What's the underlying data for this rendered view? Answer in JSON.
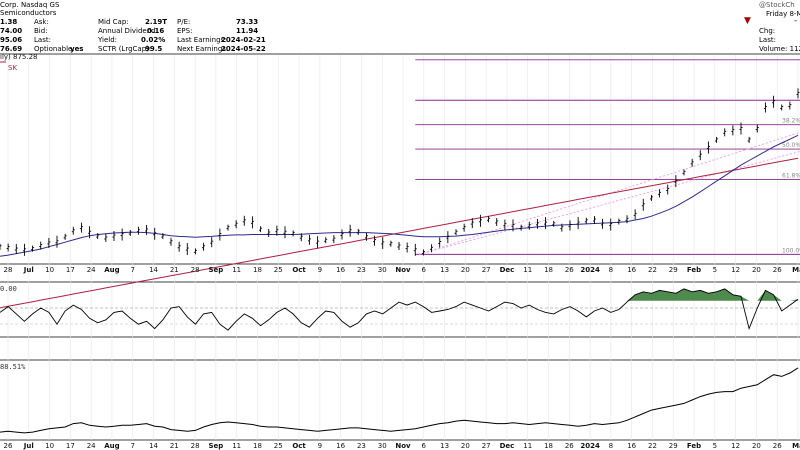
{
  "header": {
    "name_line": "Corp. Nasdaq GS",
    "sector": "Semiconductors",
    "quote_left": [
      "1.38",
      "74.00",
      "95.06",
      "76.69"
    ],
    "quote_labels": [
      "Ask:",
      "Bid:",
      "Last:",
      "Optionable:"
    ],
    "optionable": "yes",
    "stats_labels": [
      "Mid Cap:",
      "Annual Dividend:",
      "Yield:",
      "SCTR (LrgCap):"
    ],
    "stats_values": [
      "2.19T",
      "0.16",
      "0.02%",
      "99.5"
    ],
    "fund_labels": [
      "P/E:",
      "EPS:",
      "Last Earnings:",
      "Next Earnings:"
    ],
    "fund_values": [
      "73.33",
      "11.94",
      "2024-02-21",
      "2024-05-22"
    ],
    "brand": "@StockCh",
    "date": "Friday  8-M",
    "right_labels": [
      "Chg:",
      "Last:",
      "Volume: 112,8"
    ],
    "ma_legend": "ily) 875.28",
    "ma_legend2": "SK",
    "pane2_label": "0.00",
    "pane3_label": "88.51%"
  },
  "colors": {
    "price": "#000000",
    "ma50": "#2b2b8f",
    "ma200": "#b02040",
    "fib": "#8a2a8a",
    "trend": "#ee99ee",
    "rsi_fill": "#4f8a4f",
    "down": "#aa0000"
  },
  "chart_data": {
    "type": "line",
    "title": "",
    "x_ticks_main": [
      "28",
      "Jul",
      "10",
      "17",
      "24",
      "Aug",
      "7",
      "14",
      "21",
      "28",
      "Sep",
      "11",
      "18",
      "25",
      "Oct",
      "9",
      "16",
      "23",
      "30",
      "Nov",
      "6",
      "13",
      "20",
      "27",
      "Dec",
      "11",
      "18",
      "26",
      "2024",
      "8",
      "16",
      "22",
      "29",
      "Feb",
      "5",
      "12",
      "20",
      "26",
      "Ma"
    ],
    "x_ticks_lower": [
      "26",
      "Jul",
      "10",
      "17",
      "24",
      "Aug",
      "7",
      "14",
      "21",
      "28",
      "Sep",
      "11",
      "18",
      "25",
      "Oct",
      "9",
      "16",
      "23",
      "30",
      "Nov",
      "6",
      "13",
      "20",
      "27",
      "Dec",
      "11",
      "18",
      "26",
      "2024",
      "8",
      "16",
      "22",
      "29",
      "Feb",
      "5",
      "12",
      "20",
      "26",
      "Ma"
    ],
    "fib_levels": [
      "38.2%",
      "50.0%",
      "61.8%",
      "100.0%"
    ],
    "price_series": {
      "name": "",
      "values": [
        420,
        418,
        414,
        412,
        415,
        423,
        430,
        433,
        446,
        462,
        470,
        458,
        448,
        443,
        448,
        452,
        456,
        462,
        464,
        454,
        448,
        433,
        420,
        414,
        408,
        420,
        432,
        452,
        470,
        479,
        488,
        484,
        466,
        456,
        462,
        458,
        455,
        445,
        438,
        432,
        437,
        440,
        452,
        462,
        459,
        446,
        436,
        430,
        428,
        422,
        418,
        412,
        405,
        416,
        431,
        445,
        458,
        470,
        482,
        488,
        492,
        485,
        478,
        476,
        470,
        475,
        480,
        482,
        480,
        470,
        476,
        482,
        488,
        490,
        480,
        478,
        486,
        492,
        505,
        530,
        548,
        560,
        570,
        592,
        615,
        640,
        660,
        680,
        700,
        720,
        725,
        730,
        700,
        730,
        785,
        800,
        785,
        790,
        822
      ]
    },
    "ma50_values": [
      395,
      398,
      402,
      406,
      410,
      414,
      420,
      426,
      432,
      438,
      444,
      449,
      452,
      454,
      456,
      457,
      458,
      458,
      457,
      455,
      452,
      449,
      447,
      446,
      445,
      446,
      447,
      449,
      450,
      451,
      451,
      452,
      452,
      452,
      452,
      452,
      452,
      453,
      454,
      455,
      456,
      457,
      457,
      457,
      457,
      457,
      456,
      455,
      454,
      452,
      450,
      448,
      446,
      446,
      446,
      447,
      448,
      450,
      452,
      455,
      458,
      461,
      464,
      466,
      468,
      470,
      472,
      474,
      476,
      477,
      478,
      479,
      480,
      481,
      482,
      483,
      484,
      486,
      490,
      494,
      500,
      508,
      516,
      526,
      538,
      550,
      564,
      578,
      592,
      606,
      620,
      634,
      646,
      658,
      670,
      682,
      692,
      702,
      712
    ],
    "ma200_values": [
      260,
      264,
      268,
      272,
      276,
      280,
      284,
      288,
      292,
      296,
      300,
      304,
      308,
      312,
      316,
      320,
      324,
      328,
      332,
      336,
      340,
      344,
      348,
      352,
      356,
      360,
      364,
      368,
      372,
      376,
      380,
      384,
      388,
      392,
      396,
      400,
      404,
      408,
      412,
      416,
      420,
      424,
      428,
      432,
      436,
      440,
      444,
      448,
      452,
      456,
      460,
      464,
      468,
      472,
      476,
      480,
      484,
      488,
      492,
      496,
      500,
      504,
      508,
      512,
      516,
      520,
      524,
      528,
      532,
      536,
      540,
      544,
      548,
      552,
      556,
      560,
      564,
      568,
      572,
      576,
      580,
      584,
      588,
      592,
      596,
      600,
      604,
      608,
      612,
      616,
      620,
      624,
      628,
      632,
      636,
      640,
      644,
      648,
      652
    ],
    "fib_prices": [
      910,
      804,
      740,
      676,
      596,
      400
    ],
    "osc_values": [
      0.2,
      0.6,
      0.1,
      -0.4,
      0.1,
      0.5,
      0.2,
      -0.6,
      0.3,
      0.7,
      0.4,
      -0.2,
      -0.5,
      -0.3,
      0.2,
      0.3,
      -0.2,
      -0.6,
      -0.4,
      -0.9,
      -0.3,
      0.5,
      0.6,
      -0.1,
      -0.6,
      0.1,
      0.2,
      -0.6,
      -1.0,
      -0.4,
      0.1,
      -0.2,
      -0.7,
      -0.3,
      0.2,
      0.5,
      0.1,
      -0.5,
      -0.8,
      -0.2,
      0.3,
      0.2,
      -0.4,
      -0.8,
      -0.5,
      0.1,
      0.3,
      0.1,
      0.5,
      0.9,
      0.7,
      0.9,
      0.6,
      0.2,
      0.3,
      0.4,
      0.6,
      0.9,
      0.7,
      0.5,
      0.3,
      0.6,
      0.9,
      0.8,
      0.5,
      0.7,
      0.4,
      0.2,
      0.1,
      0.4,
      0.6,
      0.3,
      -0.1,
      0.3,
      0.5,
      0.2,
      0.4,
      0.9,
      1.4,
      1.6,
      1.5,
      1.7,
      1.6,
      1.5,
      1.8,
      1.6,
      1.7,
      1.5,
      1.6,
      1.8,
      1.4,
      1.3,
      -0.9,
      0.5,
      1.7,
      1.4,
      0.3,
      0.7,
      1.1
    ],
    "rel_values": [
      12,
      13,
      12,
      11,
      12,
      14,
      16,
      17,
      18,
      22,
      23,
      20,
      19,
      18,
      19,
      20,
      20,
      21,
      22,
      19,
      18,
      15,
      14,
      13,
      14,
      18,
      21,
      23,
      24,
      23,
      22,
      21,
      19,
      18,
      18,
      17,
      16,
      15,
      14,
      13,
      14,
      15,
      16,
      17,
      17,
      16,
      15,
      14,
      13,
      14,
      15,
      16,
      18,
      20,
      22,
      23,
      25,
      26,
      25,
      24,
      23,
      22,
      22,
      23,
      22,
      21,
      22,
      23,
      22,
      21,
      20,
      19,
      20,
      22,
      21,
      22,
      23,
      26,
      30,
      34,
      38,
      40,
      42,
      44,
      46,
      50,
      54,
      57,
      59,
      60,
      60,
      64,
      66,
      68,
      74,
      80,
      78,
      82,
      88
    ]
  }
}
